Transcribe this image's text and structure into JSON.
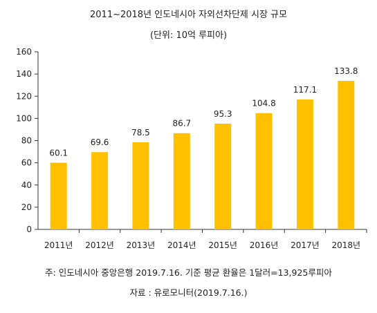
{
  "chart_data": {
    "type": "bar",
    "title": "2011~2018년 인도네시아 자외선차단제 시장 규모",
    "subtitle": "(단위: 10억 루피아)",
    "categories": [
      "2011년",
      "2012년",
      "2013년",
      "2014년",
      "2015년",
      "2016년",
      "2017년",
      "2018년"
    ],
    "values": [
      60.1,
      69.6,
      78.5,
      86.7,
      95.3,
      104.8,
      117.1,
      133.8
    ],
    "value_labels": [
      "60.1",
      "69.6",
      "78.5",
      "86.7",
      "95.3",
      "104.8",
      "117.1",
      "133.8"
    ],
    "ylim": [
      0,
      160
    ],
    "yticks": [
      "0",
      "20",
      "40",
      "60",
      "80",
      "100",
      "120",
      "140",
      "160"
    ],
    "grid": false,
    "bar_color": "#FFC000"
  },
  "notes": {
    "note": "주: 인도네시아 중앙은행 2019.7.16. 기준 평균 환율은 1달러=13,925루피아",
    "source": "자료 : 유로모니터(2019.7.16.)"
  }
}
